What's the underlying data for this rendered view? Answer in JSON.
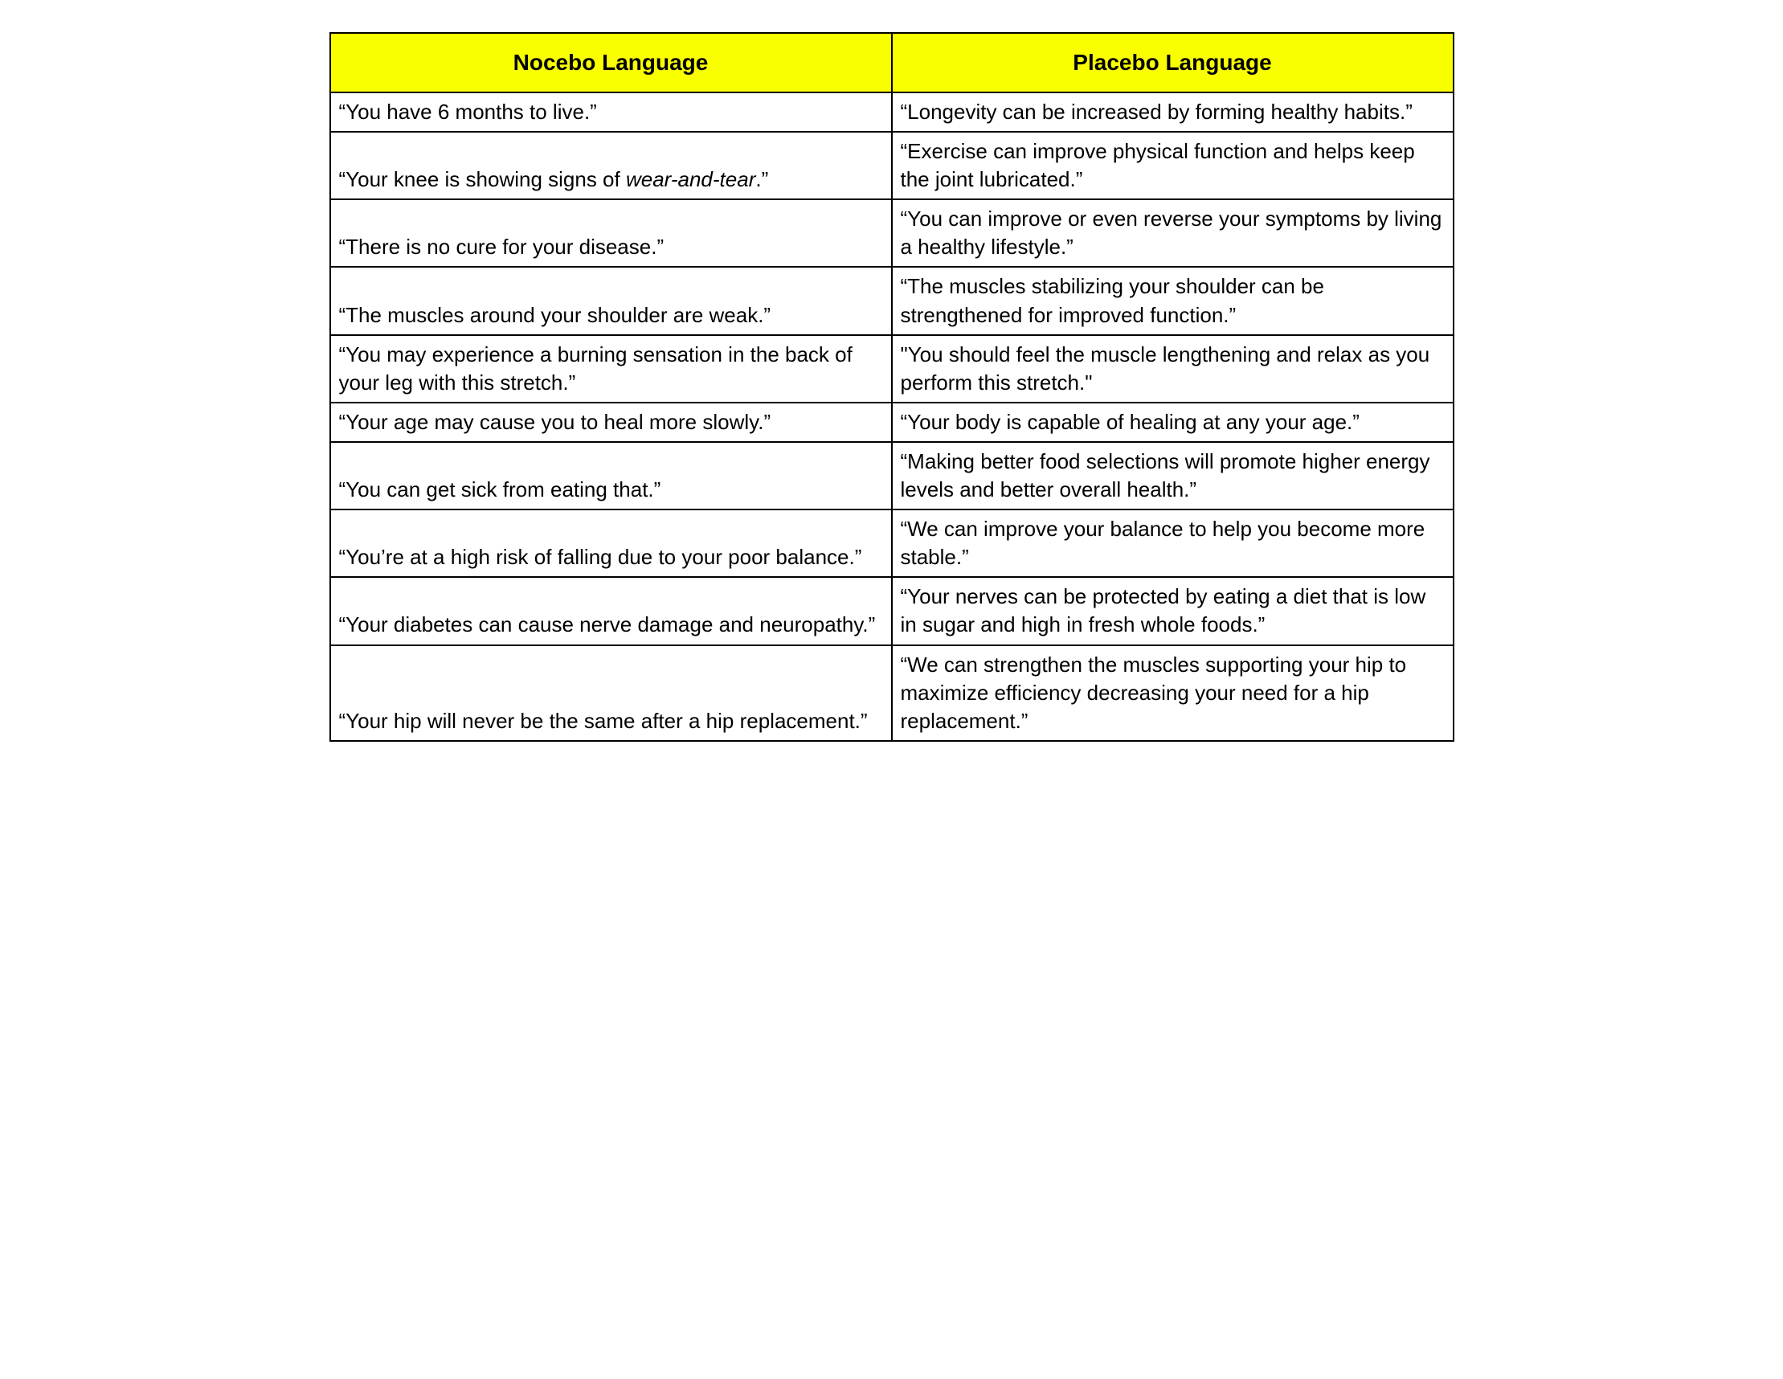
{
  "table": {
    "header_bg": "#faff00",
    "header_text_color": "#000000",
    "cell_bg": "#ffffff",
    "border_color": "#000000",
    "columns": [
      "Nocebo Language",
      "Placebo Language"
    ],
    "rows": [
      {
        "nocebo": "“You have 6 months to live.”",
        "placebo": "“Longevity can be increased by forming healthy habits.”"
      },
      {
        "nocebo_html": "“Your knee is showing signs of <em>wear-and-tear</em>.”",
        "placebo": "“Exercise can improve physical function and helps keep the joint lubricated.”"
      },
      {
        "nocebo": "“There is no cure for your disease.”",
        "placebo": "“You can improve or even reverse your symptoms by living a healthy lifestyle.”"
      },
      {
        "nocebo": "“The muscles around your shoulder are weak.”",
        "placebo": "“The muscles stabilizing your shoulder can be strengthened for improved function.”"
      },
      {
        "nocebo": "“You may experience a burning sensation in the back of your leg with this stretch.”",
        "placebo": "\"You should feel the muscle lengthening and relax as you perform this stretch.\""
      },
      {
        "nocebo": "“Your age may cause you to heal more slowly.”",
        "placebo": "“Your body is capable of healing at any your age.”"
      },
      {
        "nocebo": "“You can get sick from eating that.”",
        "placebo": "“Making better food selections will promote higher energy levels and better overall health.”"
      },
      {
        "nocebo": "“You’re at a high risk of falling due to your poor balance.”",
        "placebo": "“We can improve your balance to help you become more stable.”"
      },
      {
        "nocebo": "“Your diabetes can cause nerve damage and neuropathy.”",
        "placebo": "“Your nerves can be protected by eating a diet that is low in sugar and high in fresh whole foods.”"
      },
      {
        "nocebo": "“Your hip will never be the same after a hip replacement.”",
        "placebo": "“We can strengthen the muscles supporting your hip to maximize efficiency decreasing your need for a hip replacement.”"
      }
    ]
  }
}
